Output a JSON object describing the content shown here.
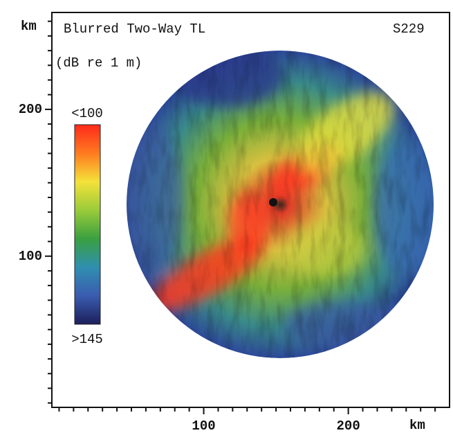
{
  "chart_data": {
    "type": "heatmap",
    "title": "Blurred Two-Way TL",
    "subtitle": "S229",
    "colorbar_label": "(dB re 1 m)",
    "xlabel": "km",
    "ylabel": "km",
    "xlim": [
      -5,
      270
    ],
    "ylim": [
      -3,
      266
    ],
    "xticks": [
      100,
      200
    ],
    "yticks": [
      100,
      200
    ],
    "xminorticks": [
      0,
      10,
      20,
      30,
      40,
      50,
      60,
      70,
      80,
      90,
      110,
      120,
      130,
      140,
      150,
      160,
      170,
      180,
      190,
      210,
      220,
      230,
      240,
      250,
      260
    ],
    "yminorticks": [
      0,
      10,
      20,
      30,
      40,
      50,
      60,
      70,
      80,
      90,
      110,
      120,
      130,
      140,
      150,
      160,
      170,
      180,
      190,
      210,
      220,
      230,
      240,
      250,
      260
    ],
    "clim": [
      100,
      145
    ],
    "colorbar_ticks": [
      {
        "value": 100,
        "label": "<100"
      },
      {
        "value": 145,
        "label": ">145"
      }
    ],
    "colormap": [
      "#ff2a1a",
      "#ff7a20",
      "#f4e23a",
      "#9acb3a",
      "#3aa040",
      "#2f8fb0",
      "#3a5cb0",
      "#1c1f5a"
    ]
  }
}
